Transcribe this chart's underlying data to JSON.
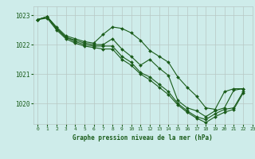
{
  "title": "Graphe pression niveau de la mer (hPa)",
  "bg_color": "#ceecea",
  "grid_color": "#b8c8c4",
  "line_color": "#1a5c1a",
  "xlim": [
    -0.5,
    23
  ],
  "ylim": [
    1019.3,
    1023.3
  ],
  "yticks": [
    1020,
    1021,
    1022,
    1023
  ],
  "xticks": [
    0,
    1,
    2,
    3,
    4,
    5,
    6,
    7,
    8,
    9,
    10,
    11,
    12,
    13,
    14,
    15,
    16,
    17,
    18,
    19,
    20,
    21,
    22,
    23
  ],
  "series": [
    [
      1022.85,
      1022.95,
      1022.6,
      1022.3,
      1022.2,
      1022.1,
      1022.05,
      1022.35,
      1022.6,
      1022.55,
      1022.4,
      1022.15,
      1021.8,
      1021.6,
      1021.4,
      1020.9,
      1020.55,
      1020.25,
      1019.85,
      1019.8,
      1020.4,
      1020.5,
      1020.5,
      null
    ],
    [
      1022.85,
      1022.95,
      1022.55,
      1022.25,
      1022.15,
      1022.05,
      1022.0,
      1022.0,
      1022.2,
      1021.85,
      1021.6,
      1021.3,
      1021.5,
      1021.2,
      1020.95,
      1020.1,
      1019.85,
      1019.75,
      1019.55,
      1019.75,
      1019.85,
      1020.45,
      1020.5,
      null
    ],
    [
      1022.85,
      1022.95,
      1022.55,
      1022.25,
      1022.1,
      1022.0,
      1021.95,
      1021.95,
      1021.95,
      1021.6,
      1021.4,
      1021.05,
      1020.9,
      1020.65,
      1020.4,
      1020.0,
      1019.75,
      1019.55,
      1019.45,
      1019.65,
      1019.8,
      1019.85,
      1020.4,
      null
    ],
    [
      1022.85,
      1022.9,
      1022.5,
      1022.2,
      1022.05,
      1021.95,
      1021.9,
      1021.85,
      1021.85,
      1021.5,
      1021.3,
      1021.0,
      1020.8,
      1020.55,
      1020.3,
      1019.95,
      1019.7,
      1019.5,
      1019.35,
      1019.55,
      1019.7,
      1019.8,
      1020.35,
      null
    ]
  ]
}
